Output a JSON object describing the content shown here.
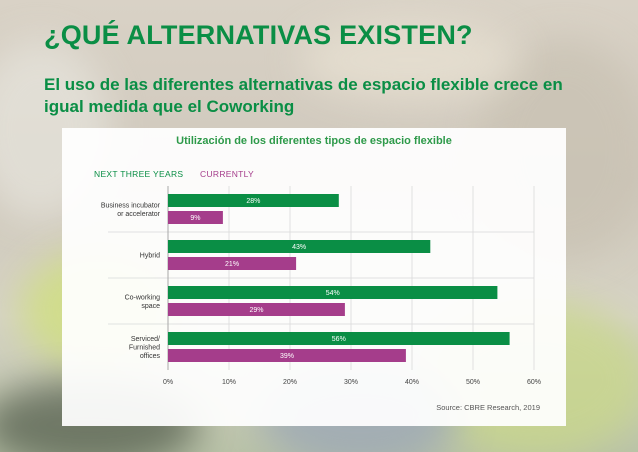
{
  "slide": {
    "title": "¿QUÉ ALTERNATIVAS EXISTEN?",
    "subtitle": "El uso de las diferentes alternativas de espacio flexible crece en igual medida que el Coworking",
    "colors": {
      "accent": "#0a8e45",
      "purple": "#a53d8b"
    }
  },
  "chart_data": {
    "type": "bar",
    "orientation": "horizontal",
    "title": "Utilización de los diferentes tipos de espacio flexible",
    "categories": [
      [
        "Business incubator",
        "or accelerator"
      ],
      [
        "Hybrid"
      ],
      [
        "Co-working",
        "space"
      ],
      [
        "Serviced/",
        "Furnished",
        "offices"
      ]
    ],
    "series": [
      {
        "name": "NEXT THREE YEARS",
        "color": "#0a8e45",
        "values": [
          28,
          43,
          54,
          56
        ],
        "labels": [
          "28%",
          "43%",
          "54%",
          "56%"
        ]
      },
      {
        "name": "CURRENTLY",
        "color": "#a53d8b",
        "values": [
          9,
          21,
          29,
          39
        ],
        "labels": [
          "9%",
          "21%",
          "29%",
          "39%"
        ]
      }
    ],
    "xlim": [
      0,
      60
    ],
    "ticks": [
      "0%",
      "10%",
      "20%",
      "30%",
      "40%",
      "50%",
      "60%"
    ],
    "grid": true,
    "legend": "top-left",
    "source": "Source: CBRE Research, 2019"
  }
}
